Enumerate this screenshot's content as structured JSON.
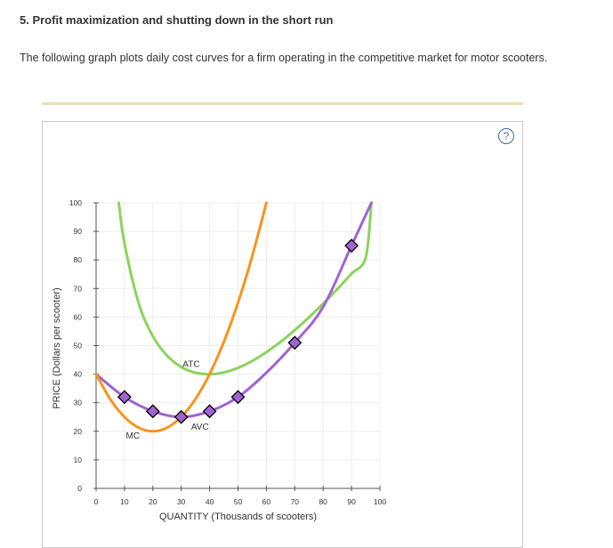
{
  "question": {
    "title": "5. Profit maximization and shutting down in the short run",
    "intro": "The following graph plots daily cost curves for a firm operating in the competitive market for motor scooters."
  },
  "help_label": "?",
  "chart_data": {
    "type": "line",
    "xlabel": "QUANTITY (Thousands of scooters)",
    "ylabel": "PRICE (Dollars per scooter)",
    "xlim": [
      0,
      100
    ],
    "ylim": [
      0,
      100
    ],
    "x_ticks": [
      0,
      10,
      20,
      30,
      40,
      50,
      60,
      70,
      80,
      90,
      100
    ],
    "y_ticks": [
      0,
      10,
      20,
      30,
      40,
      50,
      60,
      70,
      80,
      90,
      100
    ],
    "grid": true,
    "series": [
      {
        "name": "MC",
        "label": "MC",
        "color": "#f7941d",
        "x": [
          0,
          5,
          10,
          15,
          20,
          25,
          30,
          35,
          40,
          45,
          50,
          55,
          60
        ],
        "y": [
          40,
          31.25,
          25,
          21.25,
          20,
          21.25,
          25,
          31.25,
          40,
          51.25,
          65,
          81.25,
          100
        ]
      },
      {
        "name": "ATC",
        "label": "ATC",
        "color": "#8dd35f",
        "x": [
          8,
          10,
          15,
          20,
          25,
          30,
          35,
          40,
          45,
          50,
          55,
          60,
          65,
          70,
          75,
          80,
          85,
          90,
          95,
          97
        ],
        "y": [
          100,
          85.8,
          64.9,
          53.3,
          46.5,
          42.5,
          40.5,
          40,
          40.6,
          42.2,
          44.6,
          47.7,
          51.3,
          55.4,
          59.9,
          64.7,
          69.8,
          75.2,
          80.8,
          100
        ]
      },
      {
        "name": "AVC",
        "label": "AVC",
        "color": "#a064d2",
        "x": [
          0,
          10,
          20,
          30,
          40,
          50,
          60,
          70,
          80,
          90,
          97
        ],
        "y": [
          40,
          32,
          27,
          25,
          27,
          32,
          40.5,
          51,
          63.5,
          85,
          100
        ]
      }
    ],
    "markers": {
      "series": "AVC",
      "color": "#a064d2",
      "points": [
        {
          "x": 10,
          "y": 32
        },
        {
          "x": 20,
          "y": 27
        },
        {
          "x": 30,
          "y": 25
        },
        {
          "x": 40,
          "y": 27
        },
        {
          "x": 50,
          "y": 32
        },
        {
          "x": 70,
          "y": 51
        },
        {
          "x": 90,
          "y": 85
        }
      ]
    }
  }
}
